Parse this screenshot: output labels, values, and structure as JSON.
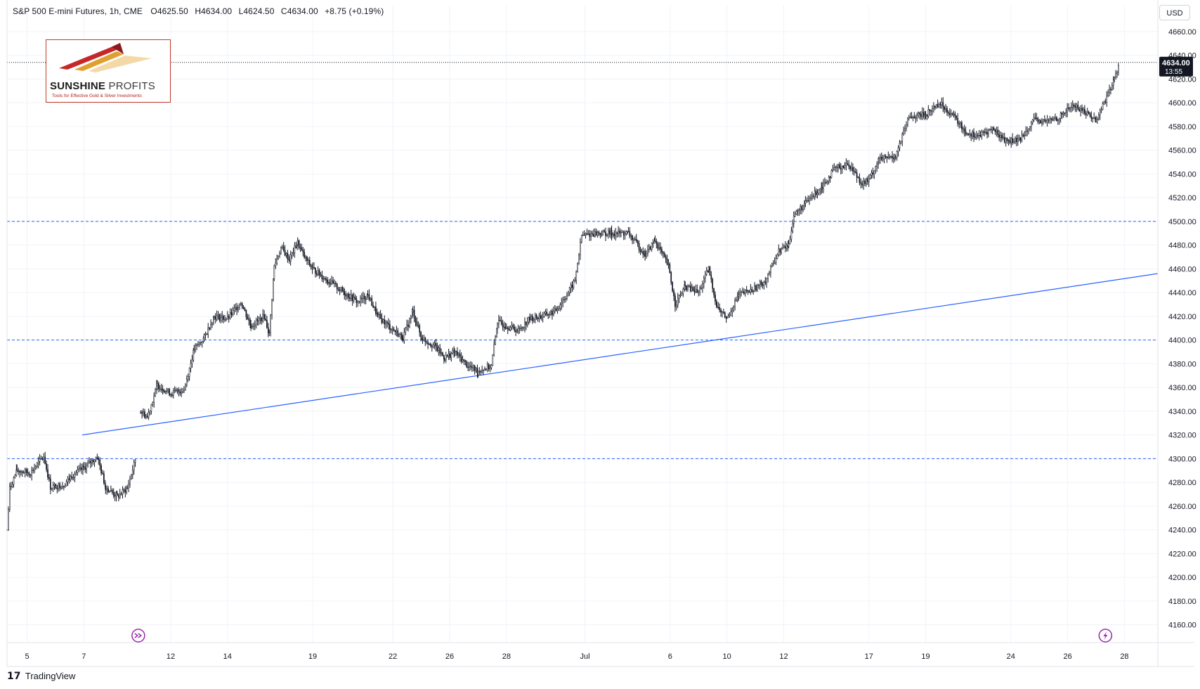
{
  "legend": {
    "symbol": "S&P 500 E-mini Futures, 1h, CME",
    "open": "O4625.50",
    "high": "H4634.00",
    "low": "L4624.50",
    "close": "C4634.00",
    "change": "+8.75 (+0.19%)"
  },
  "currency_label": "USD",
  "logo": {
    "name_bold": "SUNSHINE",
    "name_light": "PROFITS",
    "tagline": "Tools for Effective Gold & Silver Investments"
  },
  "brand": {
    "icon": "tradingview-logo-icon",
    "label": "TradingView"
  },
  "price_tag": {
    "value": "4634.00",
    "countdown": "13:55"
  },
  "colors": {
    "candle": "#131722",
    "level_line": "#2962ff",
    "trend_line": "#2962ff",
    "price_tag_bg": "#131722",
    "marker": "#9c27b0",
    "grid": "#f0f3fa"
  },
  "icons": {
    "left_marker": "double-arrow-right-icon",
    "right_marker": "lightning-icon"
  },
  "chart_data": {
    "type": "candlestick",
    "title": "S&P 500 E-mini Futures, 1h, CME",
    "y_range": [
      4145,
      4670
    ],
    "y_ticks": [
      4160,
      4180,
      4200,
      4220,
      4240,
      4260,
      4280,
      4300,
      4320,
      4340,
      4360,
      4380,
      4400,
      4420,
      4440,
      4460,
      4480,
      4500,
      4520,
      4540,
      4560,
      4580,
      4600,
      4620,
      4640,
      4660
    ],
    "x_ticks": [
      {
        "label": "5",
        "idx": 60
      },
      {
        "label": "7",
        "idx": 230
      },
      {
        "label": "12",
        "idx": 490
      },
      {
        "label": "14",
        "idx": 660
      },
      {
        "label": "19",
        "idx": 915
      },
      {
        "label": "22",
        "idx": 1155
      },
      {
        "label": "26",
        "idx": 1325
      },
      {
        "label": "28",
        "idx": 1495
      },
      {
        "label": "Jul",
        "idx": 1730
      },
      {
        "label": "6",
        "idx": 1985
      },
      {
        "label": "10",
        "idx": 2155
      },
      {
        "label": "12",
        "idx": 2325
      },
      {
        "label": "17",
        "idx": 2580
      },
      {
        "label": "19",
        "idx": 2750
      },
      {
        "label": "24",
        "idx": 3005
      },
      {
        "label": "26",
        "idx": 3175
      },
      {
        "label": "28",
        "idx": 3345
      }
    ],
    "x_domain": [
      0,
      3445
    ],
    "grid": true,
    "last_price": 4634.0,
    "horizontal_levels": [
      4300,
      4400,
      4500
    ],
    "trend_line": {
      "from": {
        "idx": 225,
        "price": 4320
      },
      "to": {
        "idx": 3445,
        "price": 4456
      }
    },
    "events": [
      {
        "type": "dividends-split",
        "idx": 393
      },
      {
        "type": "earnings-flash",
        "idx": 3288
      }
    ],
    "anchors": [
      {
        "idx": 0,
        "price": 4240
      },
      {
        "idx": 8,
        "price": 4275
      },
      {
        "idx": 30,
        "price": 4290
      },
      {
        "idx": 70,
        "price": 4288
      },
      {
        "idx": 110,
        "price": 4302
      },
      {
        "idx": 130,
        "price": 4276
      },
      {
        "idx": 170,
        "price": 4278
      },
      {
        "idx": 195,
        "price": 4286
      },
      {
        "idx": 230,
        "price": 4292
      },
      {
        "idx": 270,
        "price": 4302
      },
      {
        "idx": 295,
        "price": 4276
      },
      {
        "idx": 330,
        "price": 4268
      },
      {
        "idx": 360,
        "price": 4275
      },
      {
        "idx": 385,
        "price": 4300
      },
      {
        "idx": 395,
        "price": null
      },
      {
        "idx": 400,
        "price": 4340
      },
      {
        "idx": 420,
        "price": 4335
      },
      {
        "idx": 450,
        "price": 4362
      },
      {
        "idx": 490,
        "price": 4355
      },
      {
        "idx": 530,
        "price": 4358
      },
      {
        "idx": 560,
        "price": 4392
      },
      {
        "idx": 590,
        "price": 4402
      },
      {
        "idx": 620,
        "price": 4420
      },
      {
        "idx": 660,
        "price": 4418
      },
      {
        "idx": 700,
        "price": 4432
      },
      {
        "idx": 730,
        "price": 4412
      },
      {
        "idx": 770,
        "price": 4420
      },
      {
        "idx": 785,
        "price": 4405
      },
      {
        "idx": 800,
        "price": 4462
      },
      {
        "idx": 820,
        "price": 4478
      },
      {
        "idx": 845,
        "price": 4468
      },
      {
        "idx": 870,
        "price": 4482
      },
      {
        "idx": 890,
        "price": 4470
      },
      {
        "idx": 915,
        "price": 4460
      },
      {
        "idx": 960,
        "price": 4450
      },
      {
        "idx": 1010,
        "price": 4440
      },
      {
        "idx": 1050,
        "price": 4432
      },
      {
        "idx": 1080,
        "price": 4438
      },
      {
        "idx": 1110,
        "price": 4420
      },
      {
        "idx": 1150,
        "price": 4410
      },
      {
        "idx": 1185,
        "price": 4402
      },
      {
        "idx": 1215,
        "price": 4424
      },
      {
        "idx": 1240,
        "price": 4402
      },
      {
        "idx": 1280,
        "price": 4395
      },
      {
        "idx": 1310,
        "price": 4385
      },
      {
        "idx": 1340,
        "price": 4390
      },
      {
        "idx": 1380,
        "price": 4378
      },
      {
        "idx": 1410,
        "price": 4374
      },
      {
        "idx": 1450,
        "price": 4378
      },
      {
        "idx": 1468,
        "price": 4415
      },
      {
        "idx": 1495,
        "price": 4412
      },
      {
        "idx": 1530,
        "price": 4408
      },
      {
        "idx": 1565,
        "price": 4418
      },
      {
        "idx": 1600,
        "price": 4420
      },
      {
        "idx": 1640,
        "price": 4424
      },
      {
        "idx": 1680,
        "price": 4440
      },
      {
        "idx": 1700,
        "price": 4450
      },
      {
        "idx": 1720,
        "price": 4488
      },
      {
        "idx": 1760,
        "price": 4490
      },
      {
        "idx": 1810,
        "price": 4490
      },
      {
        "idx": 1860,
        "price": 4490
      },
      {
        "idx": 1910,
        "price": 4472
      },
      {
        "idx": 1940,
        "price": 4484
      },
      {
        "idx": 1980,
        "price": 4462
      },
      {
        "idx": 2000,
        "price": 4430
      },
      {
        "idx": 2030,
        "price": 4445
      },
      {
        "idx": 2070,
        "price": 4440
      },
      {
        "idx": 2100,
        "price": 4460
      },
      {
        "idx": 2125,
        "price": 4428
      },
      {
        "idx": 2155,
        "price": 4418
      },
      {
        "idx": 2190,
        "price": 4438
      },
      {
        "idx": 2230,
        "price": 4442
      },
      {
        "idx": 2270,
        "price": 4450
      },
      {
        "idx": 2310,
        "price": 4475
      },
      {
        "idx": 2340,
        "price": 4480
      },
      {
        "idx": 2355,
        "price": 4505
      },
      {
        "idx": 2390,
        "price": 4515
      },
      {
        "idx": 2440,
        "price": 4530
      },
      {
        "idx": 2480,
        "price": 4545
      },
      {
        "idx": 2520,
        "price": 4548
      },
      {
        "idx": 2560,
        "price": 4532
      },
      {
        "idx": 2580,
        "price": 4535
      },
      {
        "idx": 2610,
        "price": 4552
      },
      {
        "idx": 2660,
        "price": 4555
      },
      {
        "idx": 2700,
        "price": 4588
      },
      {
        "idx": 2750,
        "price": 4590
      },
      {
        "idx": 2790,
        "price": 4600
      },
      {
        "idx": 2830,
        "price": 4590
      },
      {
        "idx": 2870,
        "price": 4575
      },
      {
        "idx": 2910,
        "price": 4572
      },
      {
        "idx": 2950,
        "price": 4578
      },
      {
        "idx": 2990,
        "price": 4568
      },
      {
        "idx": 3030,
        "price": 4568
      },
      {
        "idx": 3070,
        "price": 4585
      },
      {
        "idx": 3110,
        "price": 4584
      },
      {
        "idx": 3150,
        "price": 4588
      },
      {
        "idx": 3190,
        "price": 4598
      },
      {
        "idx": 3230,
        "price": 4592
      },
      {
        "idx": 3260,
        "price": 4585
      },
      {
        "idx": 3280,
        "price": 4598
      },
      {
        "idx": 3300,
        "price": 4610
      },
      {
        "idx": 3315,
        "price": 4620
      },
      {
        "idx": 3330,
        "price": 4634
      }
    ]
  }
}
